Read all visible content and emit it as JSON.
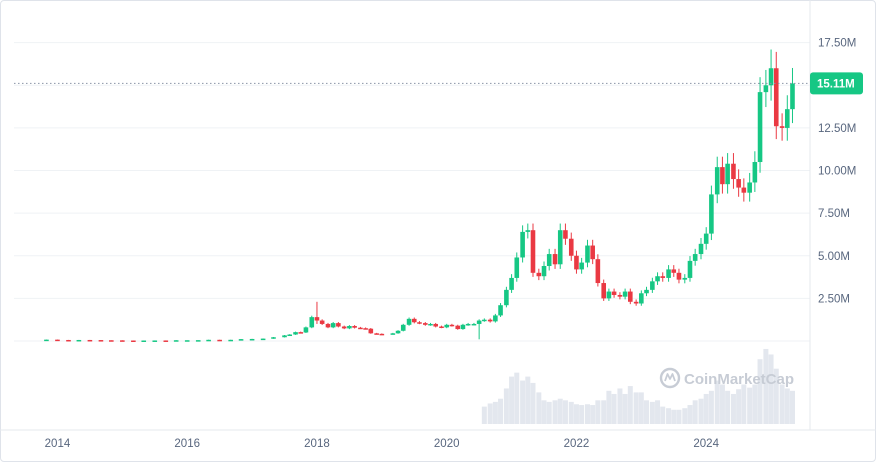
{
  "watermark": "CoinMarketCap",
  "colors": {
    "up": "#16c784",
    "down": "#ea3943",
    "grid": "#eff2f5",
    "volume": "#e3e7ee",
    "axis_text": "#58667e",
    "badge": "#16c784"
  },
  "chart_data": {
    "type": "candlestick",
    "x_ticks": [
      "2014",
      "2016",
      "2018",
      "2020",
      "2022",
      "2024"
    ],
    "y_ticks": [
      {
        "v": 2500000,
        "label": "2.50M"
      },
      {
        "v": 5000000,
        "label": "5.00M"
      },
      {
        "v": 7500000,
        "label": "7.50M"
      },
      {
        "v": 10000000,
        "label": "10.00M"
      },
      {
        "v": 12500000,
        "label": "12.50M"
      },
      {
        "v": 17500000,
        "label": "17.50M"
      }
    ],
    "ylim": [
      0,
      19300000
    ],
    "xlim": [
      2013.33,
      2025.6
    ],
    "current_price": {
      "value": 15110000,
      "label": "15.11M"
    },
    "grid": true,
    "candles": [
      {
        "t": 2013.83,
        "o": 60000,
        "c": 80000
      },
      {
        "t": 2014.0,
        "o": 80000,
        "c": 60000
      },
      {
        "t": 2014.17,
        "o": 60000,
        "c": 50000
      },
      {
        "t": 2014.33,
        "o": 50000,
        "c": 60000
      },
      {
        "t": 2014.5,
        "o": 60000,
        "c": 55000
      },
      {
        "t": 2014.67,
        "o": 55000,
        "c": 45000
      },
      {
        "t": 2014.83,
        "o": 45000,
        "c": 40000
      },
      {
        "t": 2015.0,
        "o": 40000,
        "c": 30000
      },
      {
        "t": 2015.17,
        "o": 30000,
        "c": 28000
      },
      {
        "t": 2015.33,
        "o": 28000,
        "c": 30000
      },
      {
        "t": 2015.5,
        "o": 30000,
        "c": 32000
      },
      {
        "t": 2015.67,
        "o": 32000,
        "c": 30000
      },
      {
        "t": 2015.83,
        "o": 30000,
        "c": 45000
      },
      {
        "t": 2016.0,
        "o": 45000,
        "c": 45000
      },
      {
        "t": 2016.17,
        "o": 45000,
        "c": 50000
      },
      {
        "t": 2016.33,
        "o": 50000,
        "c": 70000
      },
      {
        "t": 2016.5,
        "o": 70000,
        "c": 65000
      },
      {
        "t": 2016.67,
        "o": 65000,
        "c": 70000
      },
      {
        "t": 2016.83,
        "o": 70000,
        "c": 110000
      },
      {
        "t": 2017.0,
        "o": 110000,
        "c": 120000
      },
      {
        "t": 2017.17,
        "o": 120000,
        "c": 140000
      },
      {
        "t": 2017.33,
        "o": 140000,
        "c": 220000
      },
      {
        "t": 2017.5,
        "o": 220000,
        "c": 330000
      },
      {
        "t": 2017.58,
        "o": 330000,
        "c": 380000
      },
      {
        "t": 2017.67,
        "o": 380000,
        "c": 520000
      },
      {
        "t": 2017.75,
        "o": 520000,
        "c": 500000
      },
      {
        "t": 2017.83,
        "o": 500000,
        "c": 800000
      },
      {
        "t": 2017.92,
        "o": 800000,
        "c": 1400000
      },
      {
        "t": 2018.0,
        "o": 1400000,
        "c": 1200000,
        "h": 2300000,
        "l": 1000000
      },
      {
        "t": 2018.08,
        "o": 1200000,
        "c": 1000000
      },
      {
        "t": 2018.17,
        "o": 1000000,
        "c": 800000
      },
      {
        "t": 2018.25,
        "o": 800000,
        "c": 1050000
      },
      {
        "t": 2018.33,
        "o": 1050000,
        "c": 850000
      },
      {
        "t": 2018.42,
        "o": 850000,
        "c": 740000
      },
      {
        "t": 2018.5,
        "o": 740000,
        "c": 880000
      },
      {
        "t": 2018.58,
        "o": 880000,
        "c": 780000
      },
      {
        "t": 2018.67,
        "o": 780000,
        "c": 750000
      },
      {
        "t": 2018.75,
        "o": 750000,
        "c": 720000
      },
      {
        "t": 2018.83,
        "o": 720000,
        "c": 450000
      },
      {
        "t": 2018.92,
        "o": 450000,
        "c": 420000
      },
      {
        "t": 2019.0,
        "o": 420000,
        "c": 400000
      },
      {
        "t": 2019.17,
        "o": 400000,
        "c": 450000
      },
      {
        "t": 2019.25,
        "o": 450000,
        "c": 600000
      },
      {
        "t": 2019.33,
        "o": 600000,
        "c": 950000
      },
      {
        "t": 2019.42,
        "o": 950000,
        "c": 1300000
      },
      {
        "t": 2019.5,
        "o": 1300000,
        "c": 1100000
      },
      {
        "t": 2019.58,
        "o": 1100000,
        "c": 1050000
      },
      {
        "t": 2019.67,
        "o": 1050000,
        "c": 950000
      },
      {
        "t": 2019.75,
        "o": 950000,
        "c": 1000000
      },
      {
        "t": 2019.83,
        "o": 1000000,
        "c": 850000
      },
      {
        "t": 2019.92,
        "o": 850000,
        "c": 800000
      },
      {
        "t": 2020.0,
        "o": 800000,
        "c": 950000
      },
      {
        "t": 2020.08,
        "o": 950000,
        "c": 900000
      },
      {
        "t": 2020.17,
        "o": 900000,
        "c": 700000
      },
      {
        "t": 2020.25,
        "o": 700000,
        "c": 950000
      },
      {
        "t": 2020.33,
        "o": 950000,
        "c": 1000000
      },
      {
        "t": 2020.42,
        "o": 1000000,
        "c": 1000000
      },
      {
        "t": 2020.5,
        "o": 1000000,
        "c": 1200000,
        "l": 100000
      },
      {
        "t": 2020.58,
        "o": 1200000,
        "c": 1250000
      },
      {
        "t": 2020.67,
        "o": 1250000,
        "c": 1150000
      },
      {
        "t": 2020.75,
        "o": 1150000,
        "c": 1500000
      },
      {
        "t": 2020.83,
        "o": 1500000,
        "c": 2100000
      },
      {
        "t": 2020.92,
        "o": 2100000,
        "c": 3000000
      },
      {
        "t": 2021.0,
        "o": 3000000,
        "c": 3700000
      },
      {
        "t": 2021.08,
        "o": 3700000,
        "c": 4900000
      },
      {
        "t": 2021.17,
        "o": 4900000,
        "c": 6400000
      },
      {
        "t": 2021.25,
        "o": 6400000,
        "c": 6500000
      },
      {
        "t": 2021.33,
        "o": 6500000,
        "c": 4000000
      },
      {
        "t": 2021.42,
        "o": 4000000,
        "c": 3800000
      },
      {
        "t": 2021.5,
        "o": 3800000,
        "c": 4400000
      },
      {
        "t": 2021.58,
        "o": 4400000,
        "c": 5100000
      },
      {
        "t": 2021.67,
        "o": 5100000,
        "c": 4500000
      },
      {
        "t": 2021.75,
        "o": 4500000,
        "c": 6500000
      },
      {
        "t": 2021.83,
        "o": 6500000,
        "c": 6000000
      },
      {
        "t": 2021.92,
        "o": 6000000,
        "c": 5000000
      },
      {
        "t": 2022.0,
        "o": 5000000,
        "c": 4200000
      },
      {
        "t": 2022.08,
        "o": 4200000,
        "c": 4600000
      },
      {
        "t": 2022.17,
        "o": 4600000,
        "c": 5600000
      },
      {
        "t": 2022.25,
        "o": 5600000,
        "c": 4800000
      },
      {
        "t": 2022.33,
        "o": 4800000,
        "c": 3400000
      },
      {
        "t": 2022.42,
        "o": 3400000,
        "c": 2500000
      },
      {
        "t": 2022.5,
        "o": 2500000,
        "c": 2900000
      },
      {
        "t": 2022.58,
        "o": 2900000,
        "c": 2700000
      },
      {
        "t": 2022.67,
        "o": 2700000,
        "c": 2600000
      },
      {
        "t": 2022.75,
        "o": 2600000,
        "c": 2900000
      },
      {
        "t": 2022.83,
        "o": 2900000,
        "c": 2300000
      },
      {
        "t": 2022.92,
        "o": 2300000,
        "c": 2200000
      },
      {
        "t": 2023.0,
        "o": 2200000,
        "c": 2800000
      },
      {
        "t": 2023.08,
        "o": 2800000,
        "c": 3000000
      },
      {
        "t": 2023.17,
        "o": 3000000,
        "c": 3500000
      },
      {
        "t": 2023.25,
        "o": 3500000,
        "c": 3800000
      },
      {
        "t": 2023.33,
        "o": 3800000,
        "c": 3700000
      },
      {
        "t": 2023.42,
        "o": 3700000,
        "c": 4200000
      },
      {
        "t": 2023.5,
        "o": 4200000,
        "c": 4000000
      },
      {
        "t": 2023.58,
        "o": 4000000,
        "c": 3600000
      },
      {
        "t": 2023.67,
        "o": 3600000,
        "c": 3700000
      },
      {
        "t": 2023.75,
        "o": 3700000,
        "c": 4700000
      },
      {
        "t": 2023.83,
        "o": 4700000,
        "c": 5100000
      },
      {
        "t": 2023.92,
        "o": 5100000,
        "c": 5700000
      },
      {
        "t": 2024.0,
        "o": 5700000,
        "c": 6300000
      },
      {
        "t": 2024.08,
        "o": 6300000,
        "c": 8600000
      },
      {
        "t": 2024.17,
        "o": 8600000,
        "c": 10200000
      },
      {
        "t": 2024.25,
        "o": 10200000,
        "c": 9200000
      },
      {
        "t": 2024.33,
        "o": 9200000,
        "c": 10400000
      },
      {
        "t": 2024.42,
        "o": 10400000,
        "c": 9500000
      },
      {
        "t": 2024.5,
        "o": 9500000,
        "c": 9000000
      },
      {
        "t": 2024.58,
        "o": 9000000,
        "c": 8700000
      },
      {
        "t": 2024.67,
        "o": 8700000,
        "c": 9300000
      },
      {
        "t": 2024.75,
        "o": 9300000,
        "c": 10500000
      },
      {
        "t": 2024.83,
        "o": 10500000,
        "c": 14600000
      },
      {
        "t": 2024.92,
        "o": 14600000,
        "c": 15000000
      },
      {
        "t": 2025.0,
        "o": 15000000,
        "c": 16000000,
        "h": 17100000
      },
      {
        "t": 2025.08,
        "o": 16000000,
        "c": 12600000
      },
      {
        "t": 2025.17,
        "o": 12600000,
        "c": 12500000
      },
      {
        "t": 2025.25,
        "o": 12500000,
        "c": 13600000
      },
      {
        "t": 2025.33,
        "o": 13600000,
        "c": 15110000
      }
    ],
    "volume": [
      {
        "t": 2020.58,
        "v": 0.22
      },
      {
        "t": 2020.67,
        "v": 0.26
      },
      {
        "t": 2020.75,
        "v": 0.28
      },
      {
        "t": 2020.83,
        "v": 0.32
      },
      {
        "t": 2020.92,
        "v": 0.45
      },
      {
        "t": 2021.0,
        "v": 0.6
      },
      {
        "t": 2021.08,
        "v": 0.65
      },
      {
        "t": 2021.17,
        "v": 0.55
      },
      {
        "t": 2021.25,
        "v": 0.6
      },
      {
        "t": 2021.33,
        "v": 0.52
      },
      {
        "t": 2021.42,
        "v": 0.4
      },
      {
        "t": 2021.5,
        "v": 0.3
      },
      {
        "t": 2021.58,
        "v": 0.28
      },
      {
        "t": 2021.67,
        "v": 0.3
      },
      {
        "t": 2021.75,
        "v": 0.32
      },
      {
        "t": 2021.83,
        "v": 0.3
      },
      {
        "t": 2021.92,
        "v": 0.28
      },
      {
        "t": 2022.0,
        "v": 0.25
      },
      {
        "t": 2022.08,
        "v": 0.24
      },
      {
        "t": 2022.17,
        "v": 0.25
      },
      {
        "t": 2022.25,
        "v": 0.24
      },
      {
        "t": 2022.33,
        "v": 0.3
      },
      {
        "t": 2022.42,
        "v": 0.3
      },
      {
        "t": 2022.5,
        "v": 0.42
      },
      {
        "t": 2022.58,
        "v": 0.38
      },
      {
        "t": 2022.67,
        "v": 0.45
      },
      {
        "t": 2022.75,
        "v": 0.38
      },
      {
        "t": 2022.83,
        "v": 0.48
      },
      {
        "t": 2022.92,
        "v": 0.4
      },
      {
        "t": 2023.0,
        "v": 0.4
      },
      {
        "t": 2023.08,
        "v": 0.3
      },
      {
        "t": 2023.17,
        "v": 0.28
      },
      {
        "t": 2023.25,
        "v": 0.3
      },
      {
        "t": 2023.33,
        "v": 0.22
      },
      {
        "t": 2023.42,
        "v": 0.2
      },
      {
        "t": 2023.5,
        "v": 0.18
      },
      {
        "t": 2023.58,
        "v": 0.18
      },
      {
        "t": 2023.67,
        "v": 0.2
      },
      {
        "t": 2023.75,
        "v": 0.24
      },
      {
        "t": 2023.83,
        "v": 0.3
      },
      {
        "t": 2023.92,
        "v": 0.32
      },
      {
        "t": 2024.0,
        "v": 0.38
      },
      {
        "t": 2024.08,
        "v": 0.42
      },
      {
        "t": 2024.17,
        "v": 0.55
      },
      {
        "t": 2024.25,
        "v": 0.5
      },
      {
        "t": 2024.33,
        "v": 0.42
      },
      {
        "t": 2024.42,
        "v": 0.38
      },
      {
        "t": 2024.5,
        "v": 0.44
      },
      {
        "t": 2024.58,
        "v": 0.5
      },
      {
        "t": 2024.67,
        "v": 0.46
      },
      {
        "t": 2024.75,
        "v": 0.5
      },
      {
        "t": 2024.83,
        "v": 0.82
      },
      {
        "t": 2024.92,
        "v": 0.95
      },
      {
        "t": 2025.0,
        "v": 0.88
      },
      {
        "t": 2025.08,
        "v": 0.7
      },
      {
        "t": 2025.17,
        "v": 0.5
      },
      {
        "t": 2025.25,
        "v": 0.45
      },
      {
        "t": 2025.33,
        "v": 0.42
      }
    ]
  }
}
